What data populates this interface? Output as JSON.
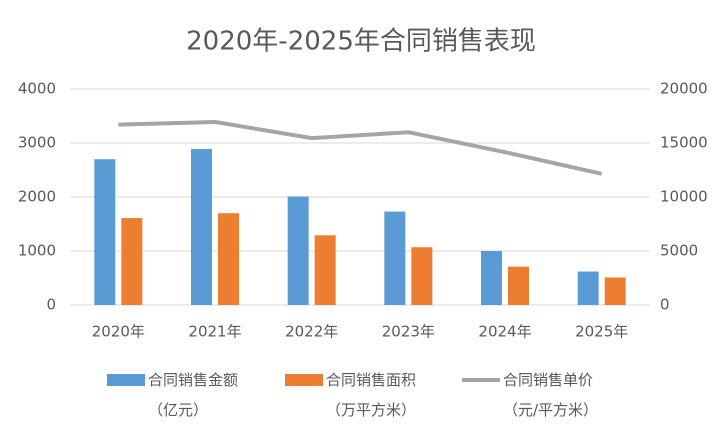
{
  "chart_data": {
    "type": "bar",
    "title": "2020年-2025年合同销售表现",
    "categories": [
      "2020年",
      "2021年",
      "2022年",
      "2023年",
      "2024年",
      "2025年"
    ],
    "series": [
      {
        "name": "合同销售金额（亿元）",
        "color": "#5b9bd5",
        "type": "bar",
        "values": [
          2700,
          2890,
          2010,
          1730,
          1000,
          620
        ]
      },
      {
        "name": "合同销售面积（万平方米）",
        "color": "#ed7d31",
        "type": "bar",
        "values": [
          1610,
          1700,
          1290,
          1070,
          710,
          510
        ]
      },
      {
        "name": "合同销售单价（元/平方米）",
        "color": "#a5a5a5",
        "type": "line",
        "axis": "y2",
        "values": [
          16700,
          16950,
          15450,
          16000,
          14150,
          12150
        ]
      }
    ],
    "ylim": [
      0,
      4000
    ],
    "yticks": [
      0,
      1000,
      2000,
      3000,
      4000
    ],
    "y2lim": [
      0,
      20000
    ],
    "y2ticks": [
      0,
      5000,
      10000,
      15000,
      20000
    ],
    "grid": true,
    "legend": "bottom"
  }
}
